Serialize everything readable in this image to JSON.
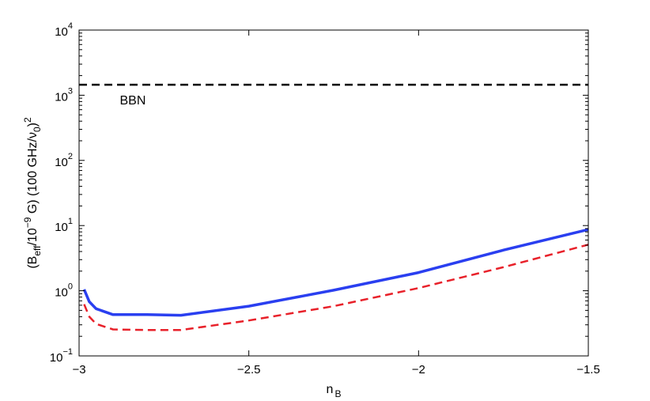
{
  "chart_data": {
    "type": "line",
    "title": "",
    "xlabel": {
      "base": "n",
      "sub": "B"
    },
    "ylabel": {
      "p1": "(B",
      "sub_eff": "eff",
      "p2": "/10",
      "sup_exp": "−9",
      "p3": " G) (100 GHz/ν",
      "sub_0": "0",
      "p4": ")",
      "sup_2": "2"
    },
    "xlim": [
      -3,
      -1.5
    ],
    "ylim": [
      0.1,
      10000
    ],
    "yscale": "log",
    "grid": false,
    "x_ticks": [
      {
        "value": -3,
        "label": "−3"
      },
      {
        "value": -2.5,
        "label": "−2.5"
      },
      {
        "value": -2,
        "label": "−2"
      },
      {
        "value": -1.5,
        "label": "−1.5"
      }
    ],
    "y_ticks": [
      {
        "value": 0.1,
        "base": "10",
        "exp": "−1"
      },
      {
        "value": 1,
        "base": "10",
        "exp": "0"
      },
      {
        "value": 10,
        "base": "10",
        "exp": "1"
      },
      {
        "value": 100,
        "base": "10",
        "exp": "2"
      },
      {
        "value": 1000,
        "base": "10",
        "exp": "3"
      },
      {
        "value": 10000,
        "base": "10",
        "exp": "4"
      }
    ],
    "series": [
      {
        "style": "solid",
        "color": "#2a3ff0",
        "x": [
          -2.985,
          -2.97,
          -2.95,
          -2.9,
          -2.8,
          -2.7,
          -2.5,
          -2.25,
          -2.0,
          -1.75,
          -1.5
        ],
        "y": [
          1.05,
          0.68,
          0.53,
          0.43,
          0.43,
          0.42,
          0.58,
          1.02,
          1.9,
          4.2,
          8.7
        ]
      },
      {
        "style": "dashed",
        "color": "#e8212a",
        "x": [
          -2.985,
          -2.97,
          -2.95,
          -2.9,
          -2.8,
          -2.7,
          -2.5,
          -2.25,
          -2.0,
          -1.75,
          -1.5
        ],
        "y": [
          0.62,
          0.4,
          0.31,
          0.255,
          0.25,
          0.25,
          0.35,
          0.58,
          1.1,
          2.3,
          5.1
        ]
      },
      {
        "style": "dashed",
        "color": "#000000",
        "x": [
          -3,
          -1.5
        ],
        "y": [
          1450,
          1450
        ]
      }
    ],
    "annotations": [
      {
        "text": "BBN",
        "x": -2.88,
        "y": 720
      }
    ]
  }
}
